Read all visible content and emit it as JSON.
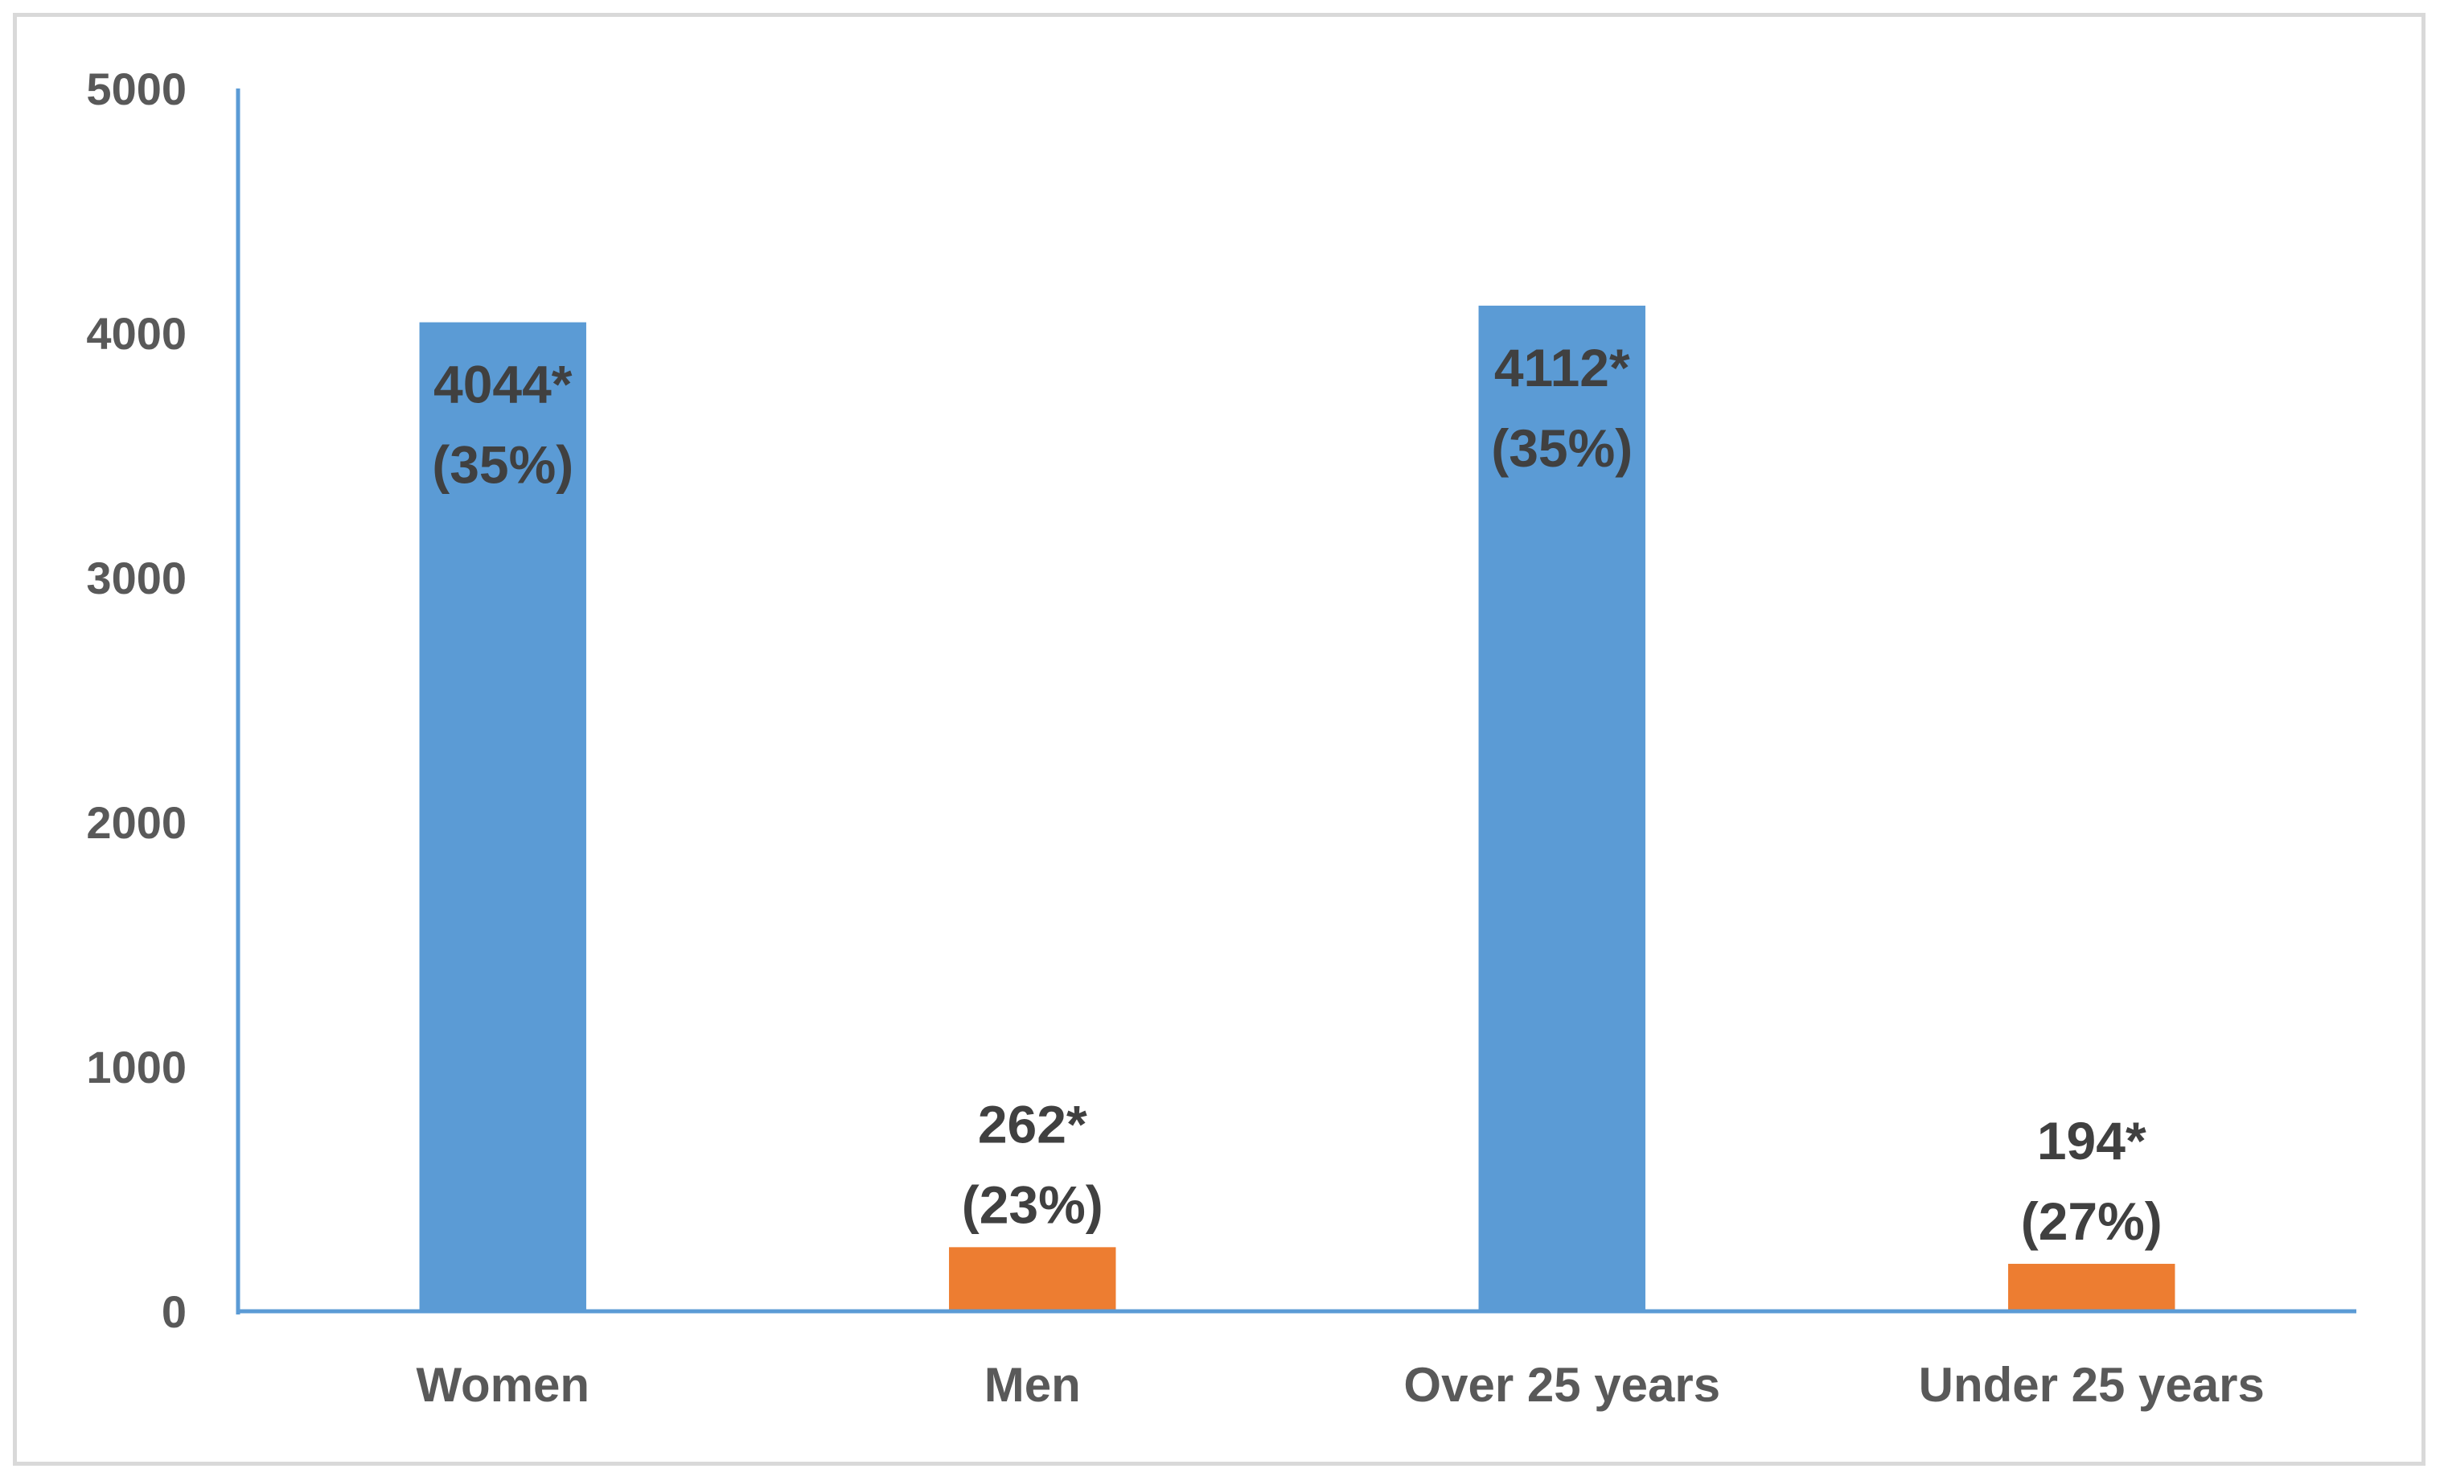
{
  "chart_data": {
    "type": "bar",
    "title": "",
    "xlabel": "",
    "ylabel": "",
    "categories": [
      "Women",
      "Men",
      "Over 25 years",
      "Under 25 years"
    ],
    "values": [
      4044,
      262,
      4112,
      194
    ],
    "bar_colors": [
      "#5b9bd5",
      "#ed7d31",
      "#5b9bd5",
      "#ed7d31"
    ],
    "axis_color": "#5b9bd5",
    "value_labels": [
      "4044*",
      "262*",
      "4112*",
      "194*"
    ],
    "percent_labels": [
      "(35%)",
      "(23%)",
      "(35%)",
      "(27%)"
    ],
    "ylim": [
      0,
      5000
    ],
    "yticks": [
      0,
      1000,
      2000,
      3000,
      4000,
      5000
    ],
    "grid": false,
    "legend": "none"
  }
}
